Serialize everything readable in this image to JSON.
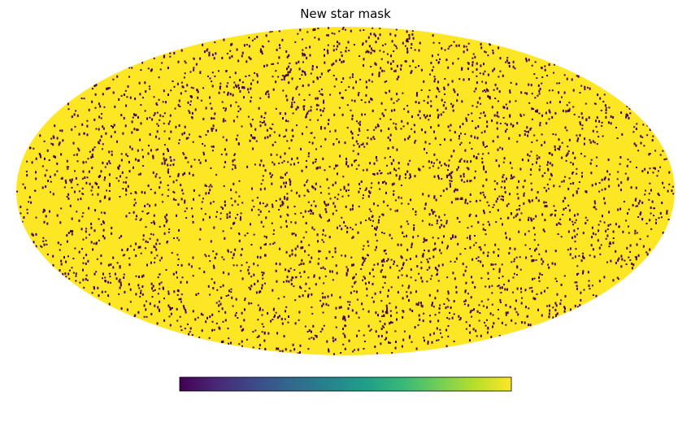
{
  "chart_data": {
    "type": "heatmap",
    "projection": "mollweide",
    "title": "New star mask",
    "colormap": "viridis",
    "background_value": 1,
    "masked_value": 0,
    "background_color": "#fde725",
    "masked_color": "#440154",
    "colorbar_colors": [
      "#440154",
      "#482878",
      "#3e4989",
      "#31688e",
      "#26828e",
      "#1f9e89",
      "#35b779",
      "#6ece58",
      "#b5de2b",
      "#fde725"
    ],
    "colorbar_ticks": [],
    "n_masked_pixels": 3600,
    "random_seed": 20240517
  }
}
